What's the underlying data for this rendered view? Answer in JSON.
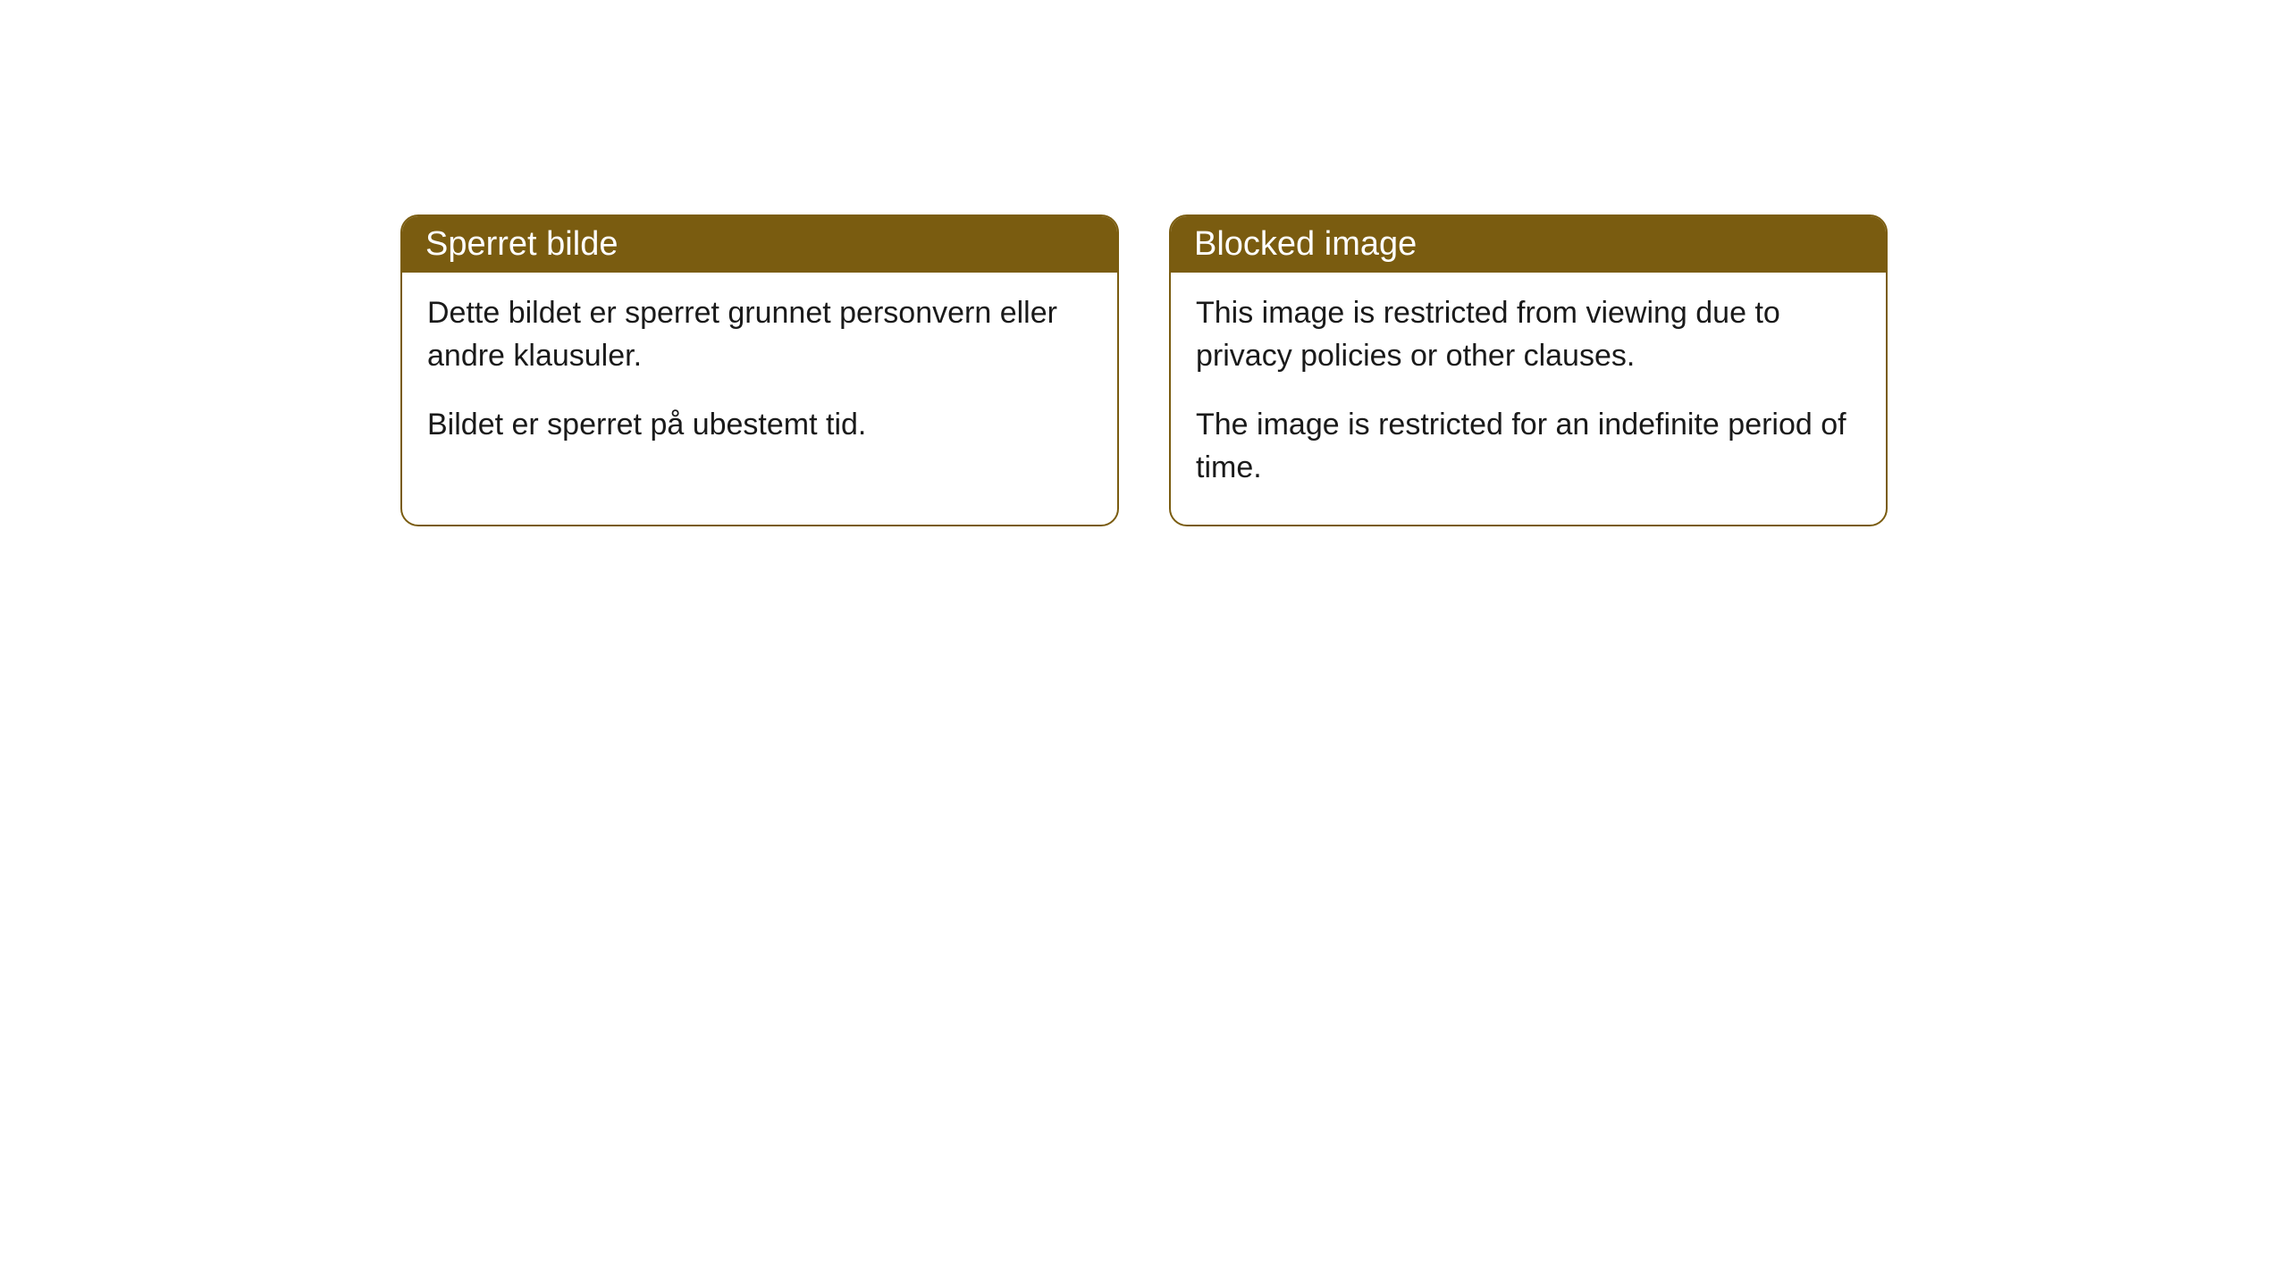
{
  "cards": [
    {
      "title": "Sperret bilde",
      "paragraph1": "Dette bildet er sperret grunnet personvern eller andre klausuler.",
      "paragraph2": "Bildet er sperret på ubestemt tid."
    },
    {
      "title": "Blocked image",
      "paragraph1": "This image is restricted from viewing due to privacy policies or other clauses.",
      "paragraph2": "The image is restricted for an indefinite period of time."
    }
  ],
  "styling": {
    "header_bg_color": "#7a5c10",
    "header_text_color": "#ffffff",
    "border_color": "#7a5c10",
    "body_bg_color": "#ffffff",
    "body_text_color": "#1a1a1a",
    "border_radius": 20,
    "title_fontsize": 38,
    "body_fontsize": 34
  }
}
